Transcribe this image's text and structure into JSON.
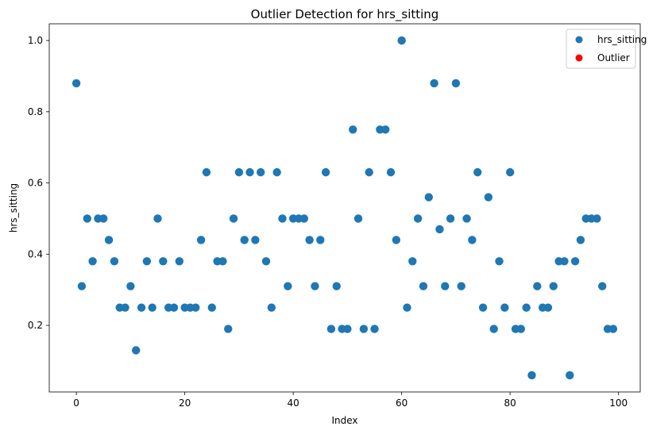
{
  "chart_data": {
    "type": "scatter",
    "title": "Outlier Detection for hrs_sitting",
    "xlabel": "Index",
    "ylabel": "hrs_sitting",
    "xlim": [
      -5,
      104
    ],
    "ylim": [
      0.013,
      1.047
    ],
    "xticks": [
      0,
      20,
      40,
      60,
      80,
      100
    ],
    "yticks": [
      0.2,
      0.4,
      0.6,
      0.8,
      1.0
    ],
    "grid": false,
    "legend_position": "top-right",
    "series": [
      {
        "name": "hrs_sitting",
        "color": "#1f77b4",
        "x": [
          0,
          1,
          2,
          3,
          4,
          5,
          6,
          7,
          8,
          9,
          10,
          11,
          12,
          13,
          14,
          15,
          16,
          17,
          18,
          19,
          20,
          21,
          22,
          23,
          24,
          25,
          26,
          27,
          28,
          29,
          30,
          31,
          32,
          33,
          34,
          35,
          36,
          37,
          38,
          39,
          40,
          41,
          42,
          43,
          44,
          45,
          46,
          47,
          48,
          49,
          50,
          51,
          52,
          53,
          54,
          55,
          56,
          57,
          58,
          59,
          60,
          61,
          62,
          63,
          64,
          65,
          66,
          67,
          68,
          69,
          70,
          71,
          72,
          73,
          74,
          75,
          76,
          77,
          78,
          79,
          80,
          81,
          82,
          83,
          84,
          85,
          86,
          87,
          88,
          89,
          90,
          91,
          92,
          93,
          94,
          95,
          96,
          97,
          98,
          99
        ],
        "y": [
          0.88,
          0.31,
          0.5,
          0.38,
          0.5,
          0.5,
          0.44,
          0.38,
          0.25,
          0.25,
          0.31,
          0.13,
          0.25,
          0.38,
          0.25,
          0.5,
          0.38,
          0.25,
          0.25,
          0.38,
          0.25,
          0.25,
          0.25,
          0.44,
          0.63,
          0.25,
          0.38,
          0.38,
          0.19,
          0.5,
          0.63,
          0.44,
          0.63,
          0.44,
          0.63,
          0.38,
          0.25,
          0.63,
          0.5,
          0.31,
          0.5,
          0.5,
          0.5,
          0.44,
          0.31,
          0.44,
          0.63,
          0.19,
          0.31,
          0.19,
          0.19,
          0.75,
          0.5,
          0.19,
          0.63,
          0.19,
          0.75,
          0.75,
          0.63,
          0.44,
          1.0,
          0.25,
          0.38,
          0.5,
          0.31,
          0.56,
          0.88,
          0.47,
          0.31,
          0.5,
          0.88,
          0.31,
          0.5,
          0.44,
          0.63,
          0.25,
          0.56,
          0.19,
          0.38,
          0.25,
          0.63,
          0.19,
          0.19,
          0.25,
          0.06,
          0.31,
          0.25,
          0.25,
          0.31,
          0.38,
          0.38,
          0.06,
          0.38,
          0.44,
          0.5,
          0.5,
          0.5,
          0.31,
          0.19,
          0.19
        ]
      },
      {
        "name": "Outlier",
        "color": "#ff0000",
        "x": [],
        "y": []
      }
    ]
  }
}
